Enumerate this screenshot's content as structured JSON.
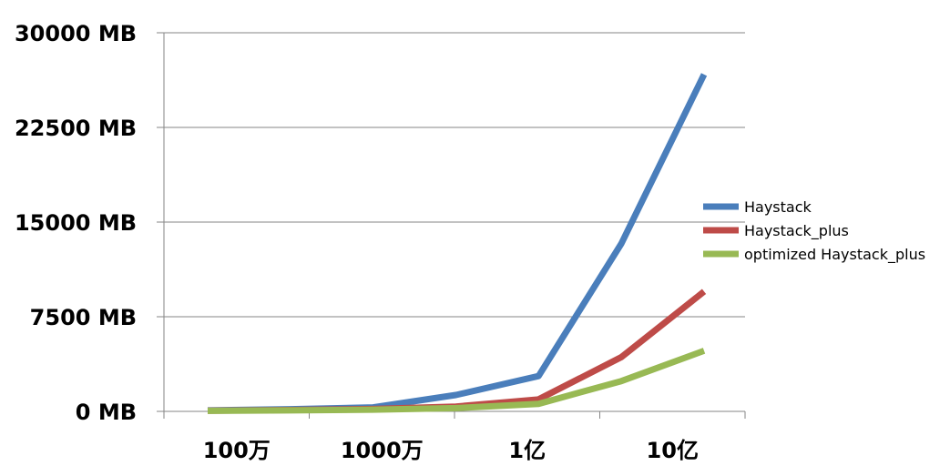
{
  "chart_data": {
    "type": "line",
    "title": "",
    "xlabel": "",
    "ylabel": "",
    "x_tick_labels": [
      "100万",
      "1000万",
      "1亿",
      "10亿"
    ],
    "x_points": 7,
    "y_ticks": [
      0,
      7500,
      15000,
      22500,
      30000
    ],
    "y_tick_labels": [
      "0 MB",
      "7500 MB",
      "15000 MB",
      "22500 MB",
      "30000 MB"
    ],
    "ylim": [
      0,
      30000
    ],
    "grid": true,
    "legend_position": "right",
    "series": [
      {
        "name": "Haystack",
        "color": "#4a7ebb",
        "values": [
          80,
          170,
          320,
          1300,
          2800,
          13300,
          26700
        ]
      },
      {
        "name": "Haystack_plus",
        "color": "#be4b48",
        "values": [
          60,
          110,
          190,
          380,
          950,
          4300,
          9500
        ]
      },
      {
        "name": "optimized Haystack_plus",
        "color": "#98b954",
        "values": [
          40,
          80,
          140,
          260,
          600,
          2400,
          4800
        ]
      }
    ]
  }
}
